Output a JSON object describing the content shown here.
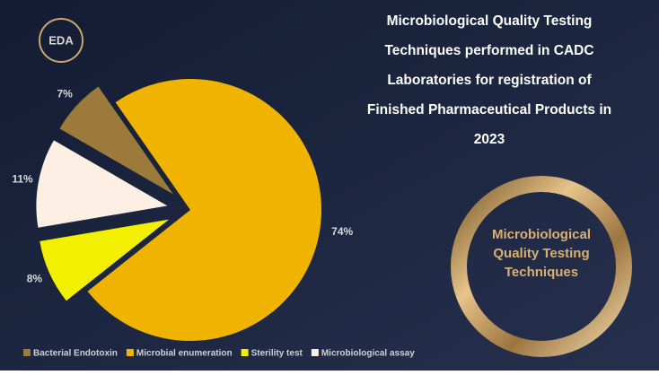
{
  "logo": {
    "text": "EDA"
  },
  "chart_data": {
    "type": "pie",
    "title": [
      "Microbiological Quality Testing",
      "Techniques performed in CADC",
      "Laboratories for registration of",
      "Finished Pharmaceutical Products in",
      "2023"
    ],
    "categories": [
      "Bacterial Endotoxin",
      "Microbial enumeration",
      "Sterility test",
      "Microbiological assay"
    ],
    "values": [
      7,
      74,
      8,
      11
    ],
    "value_labels": [
      "7%",
      "74%",
      "8%",
      "11%"
    ],
    "colors": [
      "#9c7a3c",
      "#f0b400",
      "#f2f000",
      "#fdefe3"
    ],
    "legend": "bottom"
  },
  "badge": {
    "lines": [
      "Microbiological",
      "Quality Testing",
      "Techniques"
    ]
  }
}
